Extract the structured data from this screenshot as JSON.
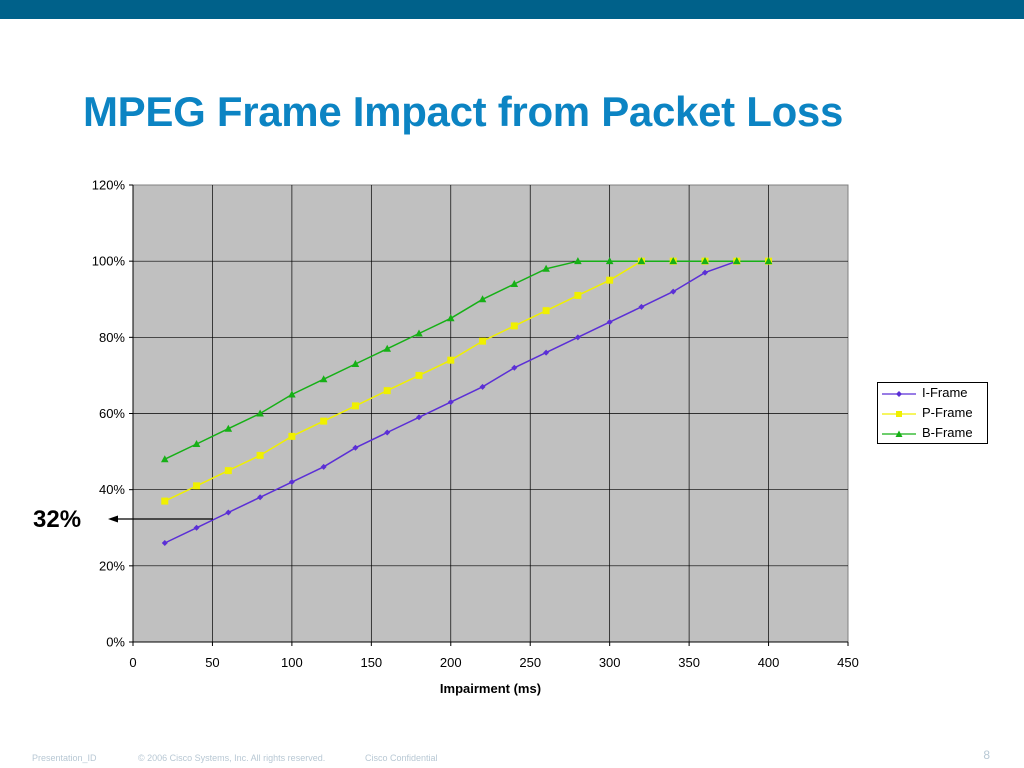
{
  "slide": {
    "title": "MPEG Frame Impact from Packet Loss",
    "callout": "32%",
    "footer_id": "Presentation_ID",
    "footer_copyright": "© 2006 Cisco Systems, Inc. All rights reserved.",
    "footer_confidential": "Cisco Confidential",
    "page_number": "8"
  },
  "colors": {
    "bar": "#00618a",
    "title": "#0c84c3",
    "plot_bg": "#c0c0c0",
    "i_frame": "#5b2fd6",
    "p_frame": "#f0f000",
    "b_frame": "#16b016"
  },
  "chart_data": {
    "type": "line",
    "xlabel": "Impairment (ms)",
    "ylabel": "",
    "xlim": [
      0,
      450
    ],
    "ylim": [
      0,
      1.2
    ],
    "x_ticks": [
      "0",
      "50",
      "100",
      "150",
      "200",
      "250",
      "300",
      "350",
      "400",
      "450"
    ],
    "y_ticks": [
      "0%",
      "20%",
      "40%",
      "60%",
      "80%",
      "100%",
      "120%"
    ],
    "grid": true,
    "legend_position": "right",
    "series": [
      {
        "name": "I-Frame",
        "marker": "diamond",
        "x": [
          20,
          40,
          60,
          80,
          100,
          120,
          140,
          160,
          180,
          200,
          220,
          240,
          260,
          280,
          300,
          320,
          340,
          360,
          380,
          400
        ],
        "y": [
          0.26,
          0.3,
          0.34,
          0.38,
          0.42,
          0.46,
          0.51,
          0.55,
          0.59,
          0.63,
          0.67,
          0.72,
          0.76,
          0.8,
          0.84,
          0.88,
          0.92,
          0.97,
          1.0,
          1.0
        ]
      },
      {
        "name": "P-Frame",
        "marker": "square",
        "x": [
          20,
          40,
          60,
          80,
          100,
          120,
          140,
          160,
          180,
          200,
          220,
          240,
          260,
          280,
          300,
          320,
          340,
          360,
          380,
          400
        ],
        "y": [
          0.37,
          0.41,
          0.45,
          0.49,
          0.54,
          0.58,
          0.62,
          0.66,
          0.7,
          0.74,
          0.79,
          0.83,
          0.87,
          0.91,
          0.95,
          1.0,
          1.0,
          1.0,
          1.0,
          1.0
        ]
      },
      {
        "name": "B-Frame",
        "marker": "triangle",
        "x": [
          20,
          40,
          60,
          80,
          100,
          120,
          140,
          160,
          180,
          200,
          220,
          240,
          260,
          280,
          300,
          320,
          340,
          360,
          380,
          400
        ],
        "y": [
          0.48,
          0.52,
          0.56,
          0.6,
          0.65,
          0.69,
          0.73,
          0.77,
          0.81,
          0.85,
          0.9,
          0.94,
          0.98,
          1.0,
          1.0,
          1.0,
          1.0,
          1.0,
          1.0,
          1.0
        ]
      }
    ]
  }
}
